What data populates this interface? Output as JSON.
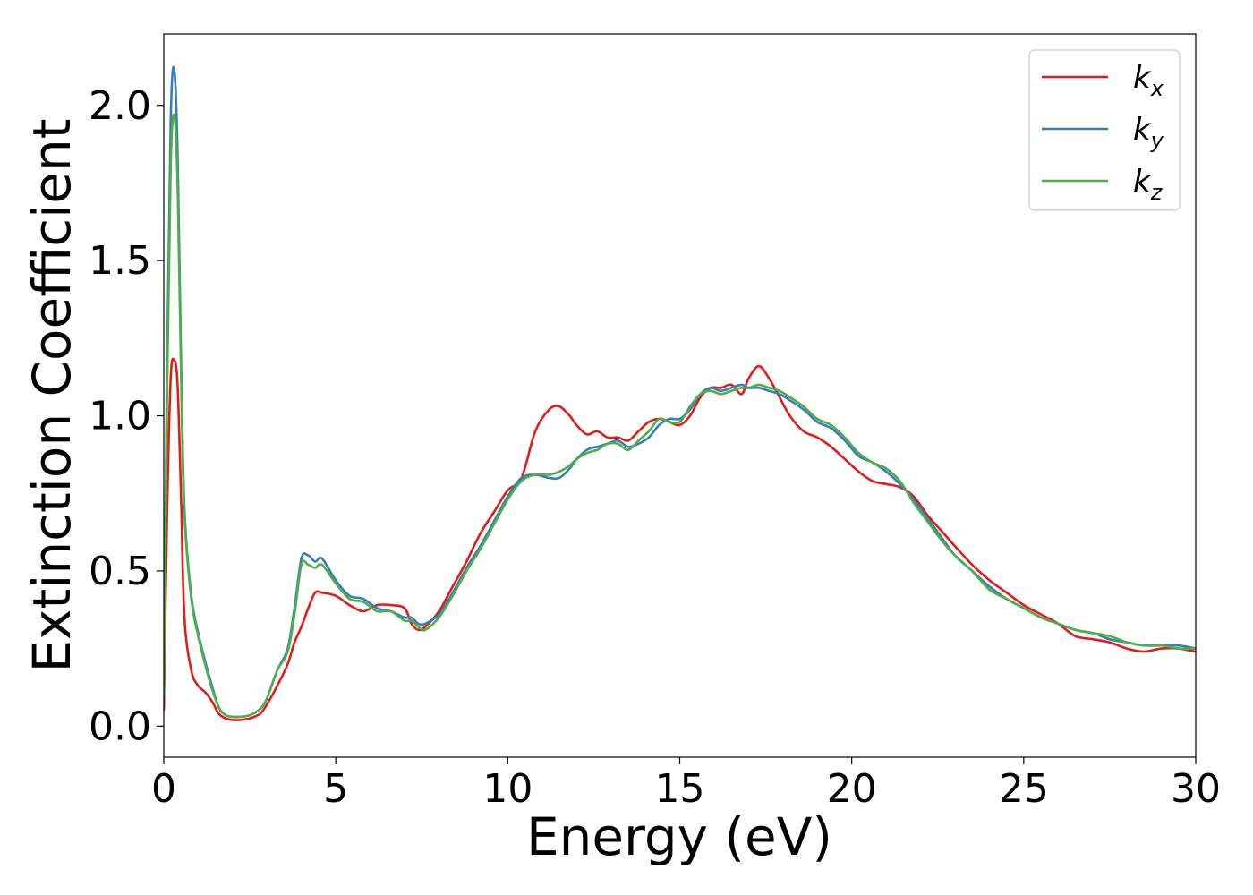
{
  "chart_data": {
    "type": "line",
    "title": "",
    "xlabel": "Energy (eV)",
    "ylabel": "Extinction Coefficient",
    "xlim": [
      0,
      30
    ],
    "ylim": [
      -0.1,
      2.23
    ],
    "xticks": [
      0,
      5,
      10,
      15,
      20,
      25,
      30
    ],
    "xtick_labels": [
      "0",
      "5",
      "10",
      "15",
      "20",
      "25",
      "30"
    ],
    "yticks": [
      0.0,
      0.5,
      1.0,
      1.5,
      2.0
    ],
    "ytick_labels": [
      "0.0",
      "0.5",
      "1.0",
      "1.5",
      "2.0"
    ],
    "grid": false,
    "legend_position": "top-right",
    "series": [
      {
        "name": "kx",
        "label_base": "k",
        "label_sub": "x",
        "color": "#e41a1c",
        "x": [
          0,
          0.1,
          0.2,
          0.3,
          0.4,
          0.5,
          0.6,
          0.8,
          1.0,
          1.2,
          1.4,
          1.6,
          1.8,
          2.0,
          2.2,
          2.5,
          2.8,
          3.0,
          3.3,
          3.6,
          3.8,
          4.0,
          4.2,
          4.4,
          4.6,
          5.0,
          5.4,
          5.8,
          6.2,
          6.6,
          7.0,
          7.2,
          7.4,
          7.6,
          8.0,
          8.4,
          8.8,
          9.2,
          9.6,
          10.0,
          10.4,
          10.8,
          11.2,
          11.5,
          11.8,
          12.0,
          12.3,
          12.6,
          12.9,
          13.2,
          13.5,
          13.8,
          14.1,
          14.4,
          14.7,
          15.0,
          15.3,
          15.6,
          15.9,
          16.2,
          16.5,
          16.8,
          17.0,
          17.3,
          17.6,
          17.9,
          18.2,
          18.6,
          19.0,
          19.4,
          19.8,
          20.2,
          20.6,
          21.0,
          21.4,
          21.8,
          22.2,
          22.6,
          23.0,
          23.5,
          24.0,
          24.5,
          25.0,
          25.5,
          26.0,
          26.5,
          27.0,
          27.5,
          28.0,
          28.5,
          29.0,
          29.5,
          30.0
        ],
        "y": [
          0.05,
          0.7,
          1.12,
          1.18,
          1.1,
          0.75,
          0.35,
          0.18,
          0.13,
          0.11,
          0.08,
          0.04,
          0.025,
          0.02,
          0.02,
          0.025,
          0.04,
          0.07,
          0.13,
          0.2,
          0.27,
          0.32,
          0.38,
          0.43,
          0.43,
          0.42,
          0.39,
          0.37,
          0.39,
          0.39,
          0.38,
          0.33,
          0.31,
          0.32,
          0.37,
          0.45,
          0.53,
          0.62,
          0.69,
          0.76,
          0.8,
          0.95,
          1.02,
          1.03,
          1.0,
          0.97,
          0.94,
          0.95,
          0.93,
          0.93,
          0.92,
          0.95,
          0.98,
          0.99,
          0.98,
          0.97,
          1.0,
          1.06,
          1.09,
          1.09,
          1.1,
          1.07,
          1.12,
          1.16,
          1.12,
          1.06,
          1.0,
          0.95,
          0.93,
          0.9,
          0.86,
          0.82,
          0.79,
          0.78,
          0.77,
          0.74,
          0.68,
          0.63,
          0.58,
          0.52,
          0.47,
          0.43,
          0.39,
          0.36,
          0.33,
          0.29,
          0.28,
          0.27,
          0.25,
          0.24,
          0.25,
          0.25,
          0.24
        ]
      },
      {
        "name": "ky",
        "label_base": "k",
        "label_sub": "y",
        "color": "#377eb8",
        "x": [
          0,
          0.1,
          0.2,
          0.3,
          0.4,
          0.5,
          0.6,
          0.8,
          1.0,
          1.2,
          1.4,
          1.6,
          1.8,
          2.0,
          2.2,
          2.5,
          2.8,
          3.0,
          3.3,
          3.6,
          3.8,
          4.0,
          4.2,
          4.4,
          4.6,
          5.0,
          5.4,
          5.8,
          6.2,
          6.6,
          7.0,
          7.2,
          7.4,
          7.6,
          8.0,
          8.4,
          8.8,
          9.2,
          9.6,
          10.0,
          10.4,
          10.8,
          11.2,
          11.5,
          11.8,
          12.0,
          12.3,
          12.6,
          12.9,
          13.2,
          13.5,
          13.8,
          14.1,
          14.4,
          14.7,
          15.0,
          15.3,
          15.6,
          15.9,
          16.2,
          16.5,
          16.8,
          17.0,
          17.3,
          17.6,
          17.9,
          18.2,
          18.6,
          19.0,
          19.4,
          19.8,
          20.2,
          20.6,
          21.0,
          21.4,
          21.8,
          22.2,
          22.6,
          23.0,
          23.5,
          24.0,
          24.5,
          25.0,
          25.5,
          26.0,
          26.5,
          27.0,
          27.5,
          28.0,
          28.5,
          29.0,
          29.5,
          30.0
        ],
        "y": [
          0.1,
          1.2,
          1.95,
          2.12,
          1.85,
          1.2,
          0.7,
          0.42,
          0.3,
          0.21,
          0.13,
          0.06,
          0.035,
          0.03,
          0.03,
          0.035,
          0.055,
          0.09,
          0.18,
          0.25,
          0.38,
          0.54,
          0.55,
          0.53,
          0.54,
          0.47,
          0.42,
          0.41,
          0.38,
          0.37,
          0.35,
          0.35,
          0.33,
          0.33,
          0.36,
          0.43,
          0.51,
          0.58,
          0.66,
          0.74,
          0.8,
          0.81,
          0.8,
          0.8,
          0.83,
          0.86,
          0.89,
          0.9,
          0.91,
          0.92,
          0.9,
          0.91,
          0.93,
          0.97,
          0.99,
          0.99,
          1.02,
          1.07,
          1.09,
          1.08,
          1.09,
          1.1,
          1.09,
          1.09,
          1.08,
          1.07,
          1.05,
          1.02,
          0.98,
          0.96,
          0.92,
          0.87,
          0.85,
          0.82,
          0.78,
          0.73,
          0.67,
          0.61,
          0.55,
          0.5,
          0.45,
          0.41,
          0.38,
          0.35,
          0.33,
          0.31,
          0.3,
          0.28,
          0.27,
          0.26,
          0.26,
          0.26,
          0.25
        ]
      },
      {
        "name": "kz",
        "label_base": "k",
        "label_sub": "z",
        "color": "#4daf4a",
        "x": [
          0,
          0.1,
          0.2,
          0.3,
          0.4,
          0.5,
          0.6,
          0.8,
          1.0,
          1.2,
          1.4,
          1.6,
          1.8,
          2.0,
          2.2,
          2.5,
          2.8,
          3.0,
          3.3,
          3.6,
          3.8,
          4.0,
          4.2,
          4.4,
          4.6,
          5.0,
          5.4,
          5.8,
          6.2,
          6.6,
          7.0,
          7.2,
          7.4,
          7.6,
          8.0,
          8.4,
          8.8,
          9.2,
          9.6,
          10.0,
          10.4,
          10.8,
          11.2,
          11.5,
          11.8,
          12.0,
          12.3,
          12.6,
          12.9,
          13.2,
          13.5,
          13.8,
          14.1,
          14.4,
          14.7,
          15.0,
          15.3,
          15.6,
          15.9,
          16.2,
          16.5,
          16.8,
          17.0,
          17.3,
          17.6,
          17.9,
          18.2,
          18.6,
          19.0,
          19.4,
          19.8,
          20.2,
          20.6,
          21.0,
          21.4,
          21.8,
          22.2,
          22.6,
          23.0,
          23.5,
          24.0,
          24.5,
          25.0,
          25.5,
          26.0,
          26.5,
          27.0,
          27.5,
          28.0,
          28.5,
          29.0,
          29.5,
          30.0
        ],
        "y": [
          0.1,
          1.1,
          1.8,
          1.97,
          1.75,
          1.15,
          0.68,
          0.41,
          0.29,
          0.2,
          0.12,
          0.06,
          0.035,
          0.03,
          0.03,
          0.035,
          0.055,
          0.09,
          0.18,
          0.24,
          0.36,
          0.52,
          0.52,
          0.51,
          0.52,
          0.46,
          0.41,
          0.4,
          0.37,
          0.37,
          0.34,
          0.34,
          0.32,
          0.31,
          0.35,
          0.42,
          0.5,
          0.57,
          0.65,
          0.73,
          0.79,
          0.81,
          0.81,
          0.82,
          0.84,
          0.86,
          0.88,
          0.89,
          0.91,
          0.91,
          0.89,
          0.92,
          0.95,
          0.99,
          0.98,
          0.98,
          1.03,
          1.07,
          1.08,
          1.07,
          1.08,
          1.09,
          1.09,
          1.1,
          1.09,
          1.08,
          1.06,
          1.03,
          0.99,
          0.97,
          0.93,
          0.88,
          0.85,
          0.83,
          0.79,
          0.72,
          0.66,
          0.6,
          0.55,
          0.5,
          0.44,
          0.41,
          0.38,
          0.35,
          0.33,
          0.31,
          0.3,
          0.29,
          0.27,
          0.26,
          0.26,
          0.25,
          0.25
        ]
      }
    ]
  }
}
